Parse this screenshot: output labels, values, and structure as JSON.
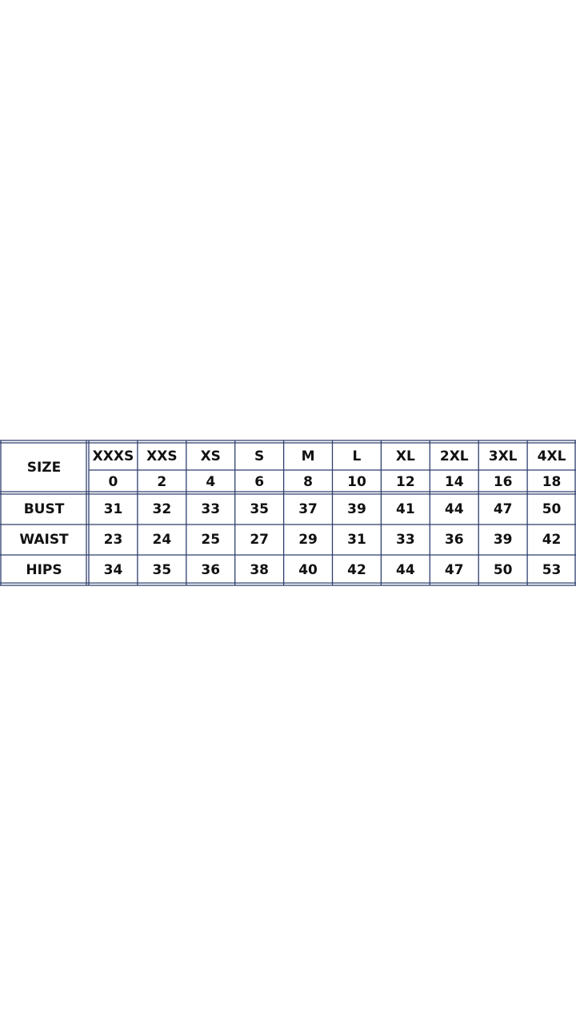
{
  "table": {
    "header": "SIZE",
    "sizes": [
      "XXXS",
      "XXS",
      "XS",
      "S",
      "M",
      "L",
      "XL",
      "2XL",
      "3XL",
      "4XL"
    ],
    "numbers": [
      "0",
      "2",
      "4",
      "6",
      "8",
      "10",
      "12",
      "14",
      "16",
      "18"
    ],
    "rows": [
      {
        "label": "BUST",
        "values": [
          "31",
          "32",
          "33",
          "35",
          "37",
          "39",
          "41",
          "44",
          "47",
          "50"
        ]
      },
      {
        "label": "WAIST",
        "values": [
          "23",
          "24",
          "25",
          "27",
          "29",
          "31",
          "33",
          "36",
          "39",
          "42"
        ]
      },
      {
        "label": "HIPS",
        "values": [
          "34",
          "35",
          "36",
          "38",
          "40",
          "42",
          "44",
          "47",
          "50",
          "53"
        ]
      }
    ]
  }
}
